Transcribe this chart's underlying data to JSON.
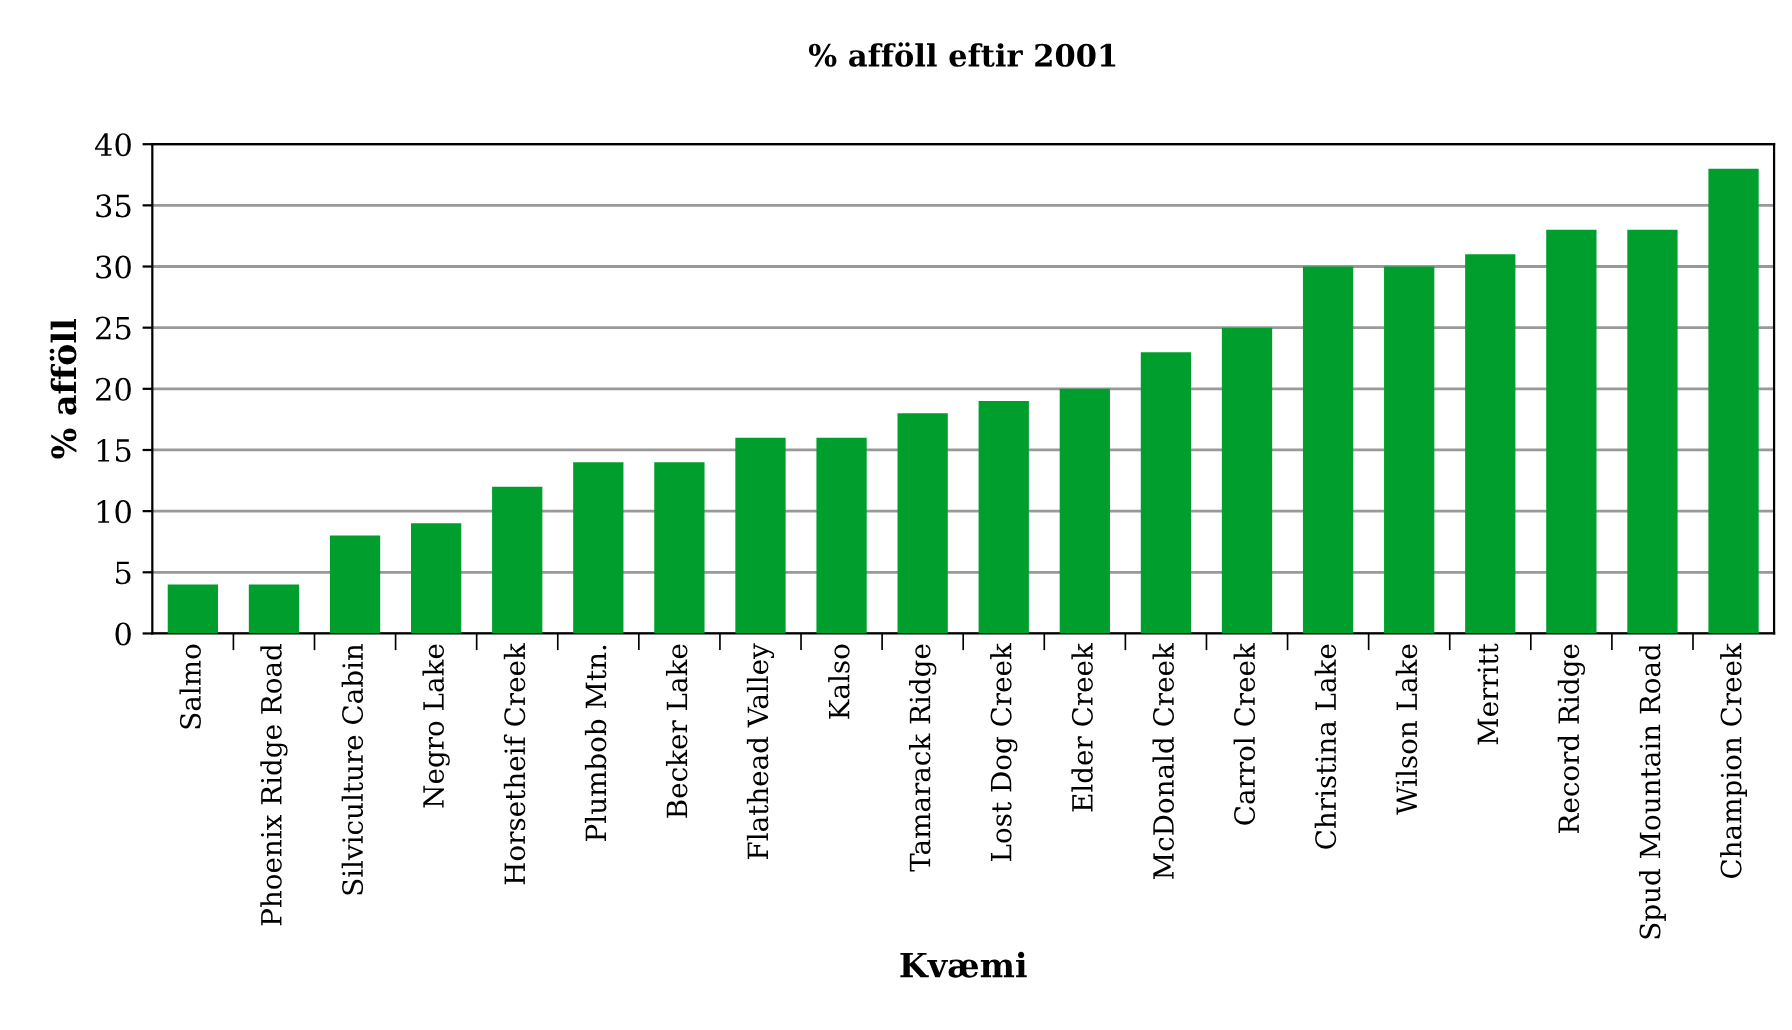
{
  "chart_data": {
    "type": "bar",
    "title": "% afföll eftir 2001",
    "xlabel": "Kvæmi",
    "ylabel": "% afföll",
    "categories": [
      "Salmo",
      "Phoenix Ridge Road",
      "Silviculture Cabin",
      "Negro Lake",
      "Horsetheif Creek",
      "Plumbob Mtn.",
      "Becker Lake",
      "Flathead Valley",
      "Kalso",
      "Tamarack Ridge",
      "Lost Dog Creek",
      "Elder Creek",
      "McDonald Creek",
      "Carrol Creek",
      "Christina Lake",
      "Wilson Lake",
      "Merritt",
      "Record Ridge",
      "Spud Mountain Road",
      "Champion Creek"
    ],
    "values": [
      4,
      4,
      8,
      9,
      12,
      14,
      14,
      16,
      16,
      18,
      19,
      20,
      23,
      25,
      30,
      30,
      31,
      33,
      33,
      38
    ],
    "color": "#009e2d",
    "ylim": [
      0,
      40
    ],
    "yticks": [
      0,
      5,
      10,
      15,
      20,
      25,
      30,
      35,
      40
    ],
    "grid": "y",
    "legend": false
  }
}
